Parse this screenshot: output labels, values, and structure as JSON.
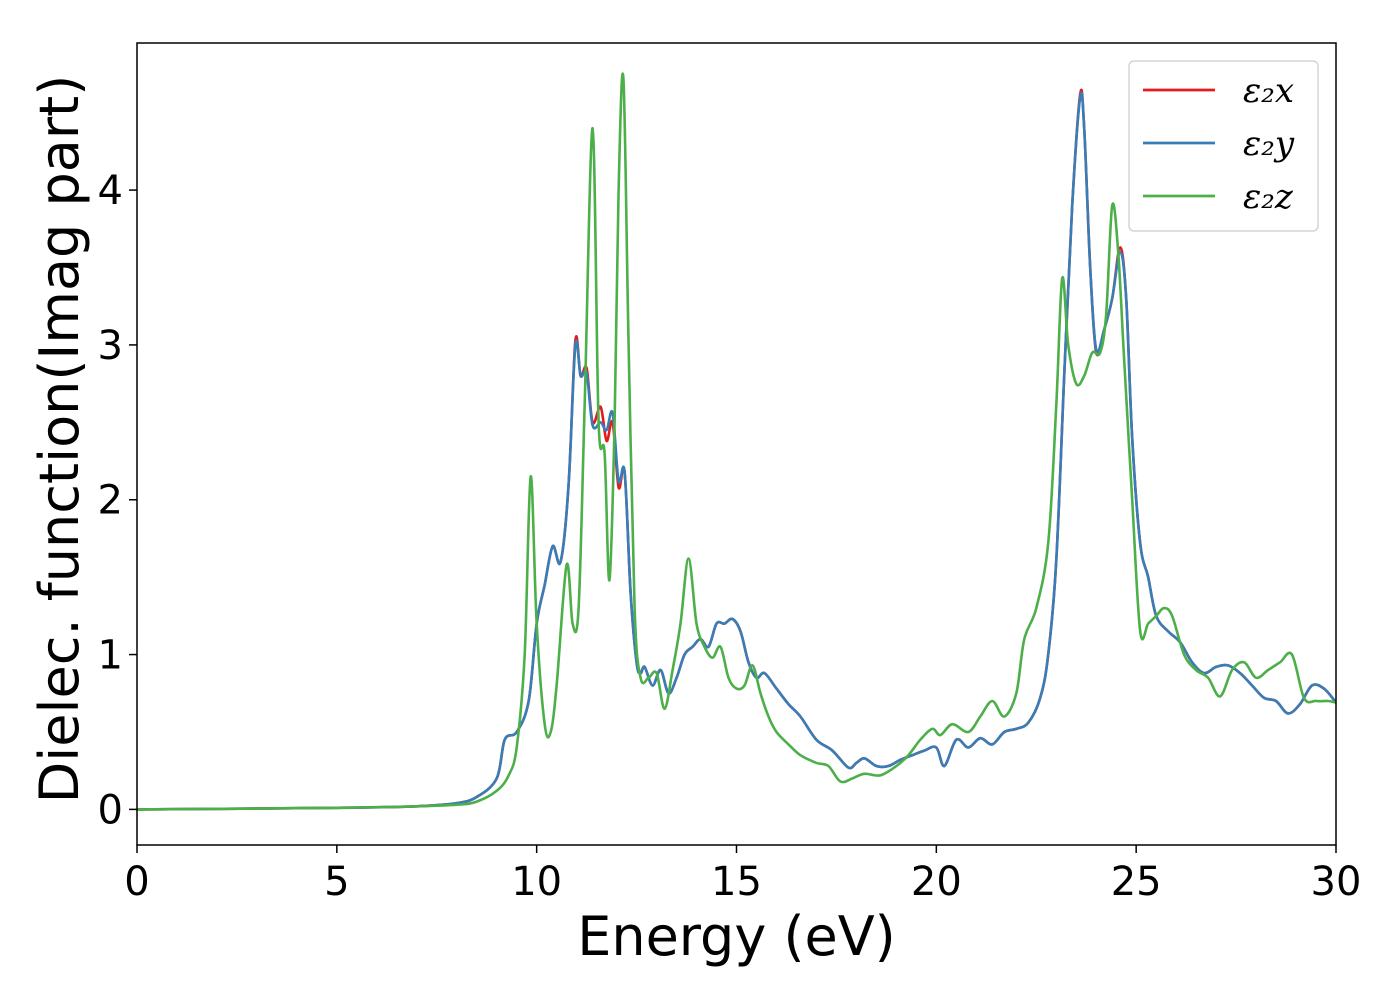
{
  "chart_data": {
    "type": "line",
    "title": "",
    "xlabel": "Energy (eV)",
    "ylabel": "Dielec. function(Imag part)",
    "xlim": [
      0,
      30
    ],
    "ylim": [
      -0.23,
      4.95
    ],
    "xticks": [
      0,
      5,
      10,
      15,
      20,
      25,
      30
    ],
    "yticks": [
      0,
      1,
      2,
      3,
      4
    ],
    "grid": false,
    "legend_position": "top-right",
    "series": [
      {
        "name": "ε₂x",
        "color": "#e41a1c",
        "x": [
          0,
          5,
          7,
          8,
          8.5,
          9.0,
          9.2,
          9.5,
          9.8,
          10.0,
          10.2,
          10.4,
          10.6,
          10.8,
          10.97,
          11.1,
          11.25,
          11.4,
          11.6,
          11.75,
          11.9,
          12.05,
          12.2,
          12.35,
          12.5,
          12.6,
          12.7,
          12.9,
          13.1,
          13.3,
          13.5,
          13.7,
          13.9,
          14.1,
          14.3,
          14.5,
          14.7,
          14.9,
          15.1,
          15.3,
          15.5,
          15.7,
          16.0,
          16.3,
          16.6,
          17.0,
          17.4,
          17.8,
          18.0,
          18.2,
          18.5,
          18.8,
          19.1,
          19.4,
          19.7,
          20.0,
          20.2,
          20.5,
          20.8,
          21.1,
          21.4,
          21.7,
          22.0,
          22.3,
          22.6,
          22.8,
          23.0,
          23.2,
          23.4,
          23.6,
          23.7,
          23.85,
          24.0,
          24.2,
          24.4,
          24.6,
          24.75,
          24.9,
          25.1,
          25.3,
          25.5,
          25.8,
          26.1,
          26.4,
          26.7,
          27.0,
          27.3,
          27.6,
          27.9,
          28.2,
          28.5,
          28.8,
          29.1,
          29.4,
          29.7,
          30.0
        ],
        "y": [
          0.0,
          0.01,
          0.02,
          0.04,
          0.08,
          0.2,
          0.45,
          0.5,
          0.7,
          1.2,
          1.45,
          1.7,
          1.6,
          2.1,
          3.03,
          2.8,
          2.85,
          2.5,
          2.6,
          2.38,
          2.5,
          2.08,
          2.18,
          1.4,
          0.95,
          0.88,
          0.92,
          0.8,
          0.9,
          0.75,
          0.85,
          1.0,
          1.05,
          1.1,
          1.05,
          1.2,
          1.2,
          1.23,
          1.15,
          0.95,
          0.85,
          0.88,
          0.78,
          0.68,
          0.6,
          0.45,
          0.38,
          0.27,
          0.3,
          0.33,
          0.28,
          0.28,
          0.32,
          0.35,
          0.38,
          0.4,
          0.28,
          0.45,
          0.4,
          0.46,
          0.42,
          0.5,
          0.52,
          0.56,
          0.72,
          1.0,
          1.6,
          2.8,
          3.9,
          4.62,
          4.4,
          3.5,
          2.95,
          3.1,
          3.3,
          3.63,
          3.3,
          2.4,
          1.72,
          1.5,
          1.25,
          1.15,
          1.08,
          0.95,
          0.88,
          0.92,
          0.93,
          0.88,
          0.8,
          0.72,
          0.7,
          0.62,
          0.68,
          0.8,
          0.78,
          0.69
        ]
      },
      {
        "name": "ε₂y",
        "color": "#377eb8",
        "x": [
          0,
          5,
          7,
          8,
          8.5,
          9.0,
          9.2,
          9.5,
          9.8,
          10.0,
          10.2,
          10.4,
          10.6,
          10.8,
          10.97,
          11.1,
          11.25,
          11.4,
          11.6,
          11.75,
          11.9,
          12.05,
          12.2,
          12.35,
          12.5,
          12.6,
          12.7,
          12.9,
          13.1,
          13.3,
          13.5,
          13.7,
          13.9,
          14.1,
          14.3,
          14.5,
          14.7,
          14.9,
          15.1,
          15.3,
          15.5,
          15.7,
          16.0,
          16.3,
          16.6,
          17.0,
          17.4,
          17.8,
          18.0,
          18.2,
          18.5,
          18.8,
          19.1,
          19.4,
          19.7,
          20.0,
          20.2,
          20.5,
          20.8,
          21.1,
          21.4,
          21.7,
          22.0,
          22.3,
          22.6,
          22.8,
          23.0,
          23.2,
          23.4,
          23.6,
          23.7,
          23.85,
          24.0,
          24.2,
          24.4,
          24.6,
          24.75,
          24.9,
          25.1,
          25.3,
          25.5,
          25.8,
          26.1,
          26.4,
          26.7,
          27.0,
          27.3,
          27.6,
          27.9,
          28.2,
          28.5,
          28.8,
          29.1,
          29.4,
          29.7,
          30.0
        ],
        "y": [
          0.0,
          0.01,
          0.02,
          0.04,
          0.08,
          0.2,
          0.45,
          0.5,
          0.7,
          1.2,
          1.45,
          1.7,
          1.6,
          2.1,
          3.0,
          2.8,
          2.82,
          2.48,
          2.5,
          2.45,
          2.56,
          2.12,
          2.18,
          1.4,
          0.95,
          0.88,
          0.92,
          0.8,
          0.9,
          0.75,
          0.85,
          1.0,
          1.05,
          1.1,
          1.05,
          1.2,
          1.2,
          1.23,
          1.15,
          0.95,
          0.85,
          0.88,
          0.78,
          0.68,
          0.6,
          0.45,
          0.38,
          0.27,
          0.3,
          0.33,
          0.28,
          0.28,
          0.32,
          0.35,
          0.38,
          0.4,
          0.28,
          0.45,
          0.4,
          0.46,
          0.42,
          0.5,
          0.52,
          0.56,
          0.72,
          1.0,
          1.6,
          2.8,
          3.9,
          4.6,
          4.4,
          3.5,
          2.97,
          3.1,
          3.3,
          3.6,
          3.3,
          2.4,
          1.72,
          1.5,
          1.25,
          1.15,
          1.08,
          0.95,
          0.88,
          0.92,
          0.93,
          0.88,
          0.8,
          0.72,
          0.7,
          0.62,
          0.68,
          0.8,
          0.78,
          0.69
        ]
      },
      {
        "name": "ε₂z",
        "color": "#4daf4a",
        "x": [
          0,
          5,
          7,
          8,
          8.5,
          9.0,
          9.3,
          9.5,
          9.7,
          9.85,
          10.0,
          10.2,
          10.35,
          10.5,
          10.75,
          10.9,
          11.05,
          11.2,
          11.4,
          11.55,
          11.7,
          11.82,
          11.95,
          12.05,
          12.17,
          12.3,
          12.45,
          12.6,
          12.8,
          13.0,
          13.2,
          13.4,
          13.6,
          13.8,
          14.0,
          14.2,
          14.4,
          14.6,
          14.8,
          15.0,
          15.2,
          15.4,
          15.6,
          15.8,
          16.0,
          16.3,
          16.6,
          17.0,
          17.3,
          17.6,
          17.9,
          18.2,
          18.6,
          19.0,
          19.3,
          19.6,
          19.9,
          20.1,
          20.4,
          20.8,
          21.1,
          21.4,
          21.7,
          22.0,
          22.2,
          22.5,
          22.8,
          23.0,
          23.15,
          23.3,
          23.5,
          23.7,
          23.9,
          24.1,
          24.25,
          24.4,
          24.55,
          24.7,
          24.9,
          25.1,
          25.3,
          25.5,
          25.7,
          25.9,
          26.2,
          26.5,
          26.8,
          27.1,
          27.4,
          27.7,
          28.0,
          28.3,
          28.6,
          28.9,
          29.2,
          29.5,
          29.8,
          30.0
        ],
        "y": [
          0.0,
          0.01,
          0.02,
          0.03,
          0.05,
          0.12,
          0.22,
          0.4,
          1.0,
          2.15,
          1.2,
          0.55,
          0.5,
          0.8,
          1.58,
          1.2,
          1.3,
          2.6,
          4.4,
          2.5,
          2.3,
          1.48,
          2.5,
          4.0,
          4.72,
          3.0,
          1.3,
          0.85,
          0.85,
          0.88,
          0.65,
          0.9,
          1.2,
          1.62,
          1.2,
          1.05,
          0.98,
          1.05,
          0.85,
          0.78,
          0.8,
          0.93,
          0.75,
          0.6,
          0.5,
          0.42,
          0.35,
          0.3,
          0.28,
          0.18,
          0.2,
          0.23,
          0.22,
          0.28,
          0.35,
          0.45,
          0.52,
          0.48,
          0.55,
          0.5,
          0.6,
          0.7,
          0.6,
          0.75,
          1.1,
          1.3,
          1.72,
          2.6,
          3.43,
          3.0,
          2.75,
          2.8,
          2.95,
          2.95,
          3.2,
          3.9,
          3.6,
          2.9,
          2.0,
          1.15,
          1.2,
          1.25,
          1.3,
          1.25,
          1.0,
          0.9,
          0.85,
          0.73,
          0.9,
          0.95,
          0.85,
          0.9,
          0.95,
          1.0,
          0.72,
          0.7,
          0.7,
          0.69
        ]
      }
    ]
  }
}
